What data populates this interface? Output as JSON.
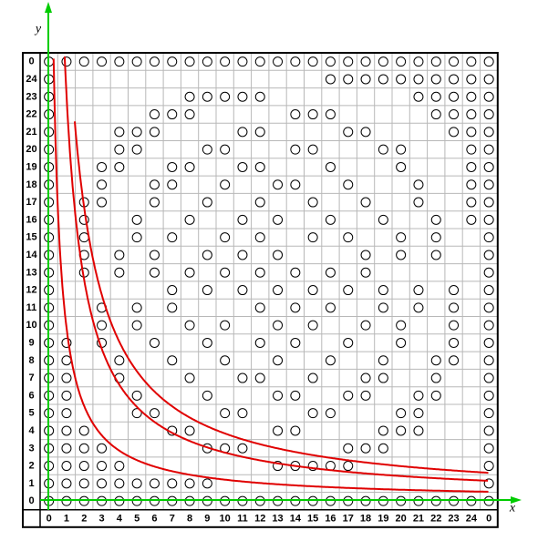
{
  "axes": {
    "x": "x",
    "y": "y"
  },
  "column_labels": [
    "0",
    "1",
    "2",
    "3",
    "4",
    "5",
    "6",
    "7",
    "8",
    "9",
    "10",
    "11",
    "12",
    "13",
    "14",
    "15",
    "16",
    "17",
    "18",
    "19",
    "20",
    "21",
    "22",
    "23",
    "24",
    "0"
  ],
  "rows": [
    {
      "label": "0",
      "circles": [
        0,
        1,
        2,
        3,
        4,
        5,
        6,
        7,
        8,
        9,
        10,
        11,
        12,
        13,
        14,
        15,
        16,
        17,
        18,
        19,
        20,
        21,
        22,
        23,
        24,
        25
      ]
    },
    {
      "label": "24",
      "circles": [
        0,
        16,
        17,
        18,
        19,
        20,
        21,
        22,
        23,
        24,
        25
      ]
    },
    {
      "label": "23",
      "circles": [
        0,
        8,
        9,
        10,
        11,
        12,
        21,
        22,
        23,
        24,
        25
      ]
    },
    {
      "label": "22",
      "circles": [
        0,
        6,
        7,
        8,
        14,
        15,
        16,
        22,
        23,
        24,
        25
      ]
    },
    {
      "label": "21",
      "circles": [
        0,
        4,
        5,
        6,
        11,
        12,
        17,
        18,
        23,
        24,
        25
      ]
    },
    {
      "label": "20",
      "circles": [
        0,
        4,
        5,
        9,
        10,
        14,
        15,
        19,
        20,
        24,
        25
      ]
    },
    {
      "label": "19",
      "circles": [
        0,
        3,
        4,
        7,
        8,
        11,
        12,
        16,
        20,
        24,
        25
      ]
    },
    {
      "label": "18",
      "circles": [
        0,
        3,
        6,
        7,
        10,
        13,
        14,
        17,
        21,
        24,
        25
      ]
    },
    {
      "label": "17",
      "circles": [
        0,
        2,
        3,
        6,
        9,
        12,
        15,
        18,
        21,
        24,
        25
      ]
    },
    {
      "label": "16",
      "circles": [
        0,
        2,
        5,
        8,
        11,
        13,
        16,
        19,
        22,
        24,
        25
      ]
    },
    {
      "label": "15",
      "circles": [
        0,
        2,
        5,
        7,
        10,
        12,
        15,
        17,
        20,
        22,
        25
      ]
    },
    {
      "label": "14",
      "circles": [
        0,
        2,
        4,
        6,
        9,
        11,
        13,
        18,
        20,
        22,
        25
      ]
    },
    {
      "label": "13",
      "circles": [
        0,
        2,
        4,
        6,
        8,
        10,
        12,
        14,
        16,
        18,
        25
      ]
    },
    {
      "label": "12",
      "circles": [
        0,
        7,
        9,
        11,
        13,
        15,
        17,
        19,
        21,
        23,
        25
      ]
    },
    {
      "label": "11",
      "circles": [
        0,
        3,
        5,
        7,
        12,
        14,
        16,
        19,
        21,
        23,
        25
      ]
    },
    {
      "label": "10",
      "circles": [
        0,
        3,
        5,
        8,
        10,
        13,
        15,
        18,
        20,
        23,
        25
      ]
    },
    {
      "label": "9",
      "circles": [
        0,
        1,
        3,
        6,
        9,
        12,
        14,
        17,
        20,
        23,
        25
      ]
    },
    {
      "label": "8",
      "circles": [
        0,
        1,
        4,
        7,
        10,
        13,
        16,
        19,
        22,
        23,
        25
      ]
    },
    {
      "label": "7",
      "circles": [
        0,
        1,
        4,
        8,
        11,
        12,
        15,
        18,
        19,
        22,
        25
      ]
    },
    {
      "label": "6",
      "circles": [
        0,
        1,
        5,
        9,
        13,
        14,
        17,
        18,
        21,
        22,
        25
      ]
    },
    {
      "label": "5",
      "circles": [
        0,
        1,
        5,
        6,
        10,
        11,
        15,
        16,
        20,
        21,
        25
      ]
    },
    {
      "label": "4",
      "circles": [
        0,
        1,
        2,
        7,
        8,
        13,
        14,
        19,
        20,
        21,
        25
      ]
    },
    {
      "label": "3",
      "circles": [
        0,
        1,
        2,
        3,
        9,
        10,
        11,
        17,
        18,
        19,
        25
      ]
    },
    {
      "label": "2",
      "circles": [
        0,
        1,
        2,
        3,
        4,
        13,
        14,
        15,
        16,
        17,
        25
      ]
    },
    {
      "label": "1",
      "circles": [
        0,
        1,
        2,
        3,
        4,
        5,
        6,
        7,
        8,
        9,
        25
      ]
    },
    {
      "label": "0",
      "circles": [
        0,
        1,
        2,
        3,
        4,
        5,
        6,
        7,
        8,
        9,
        10,
        11,
        12,
        13,
        14,
        15,
        16,
        17,
        18,
        19,
        20,
        21,
        22,
        23,
        24,
        25
      ]
    }
  ]
}
